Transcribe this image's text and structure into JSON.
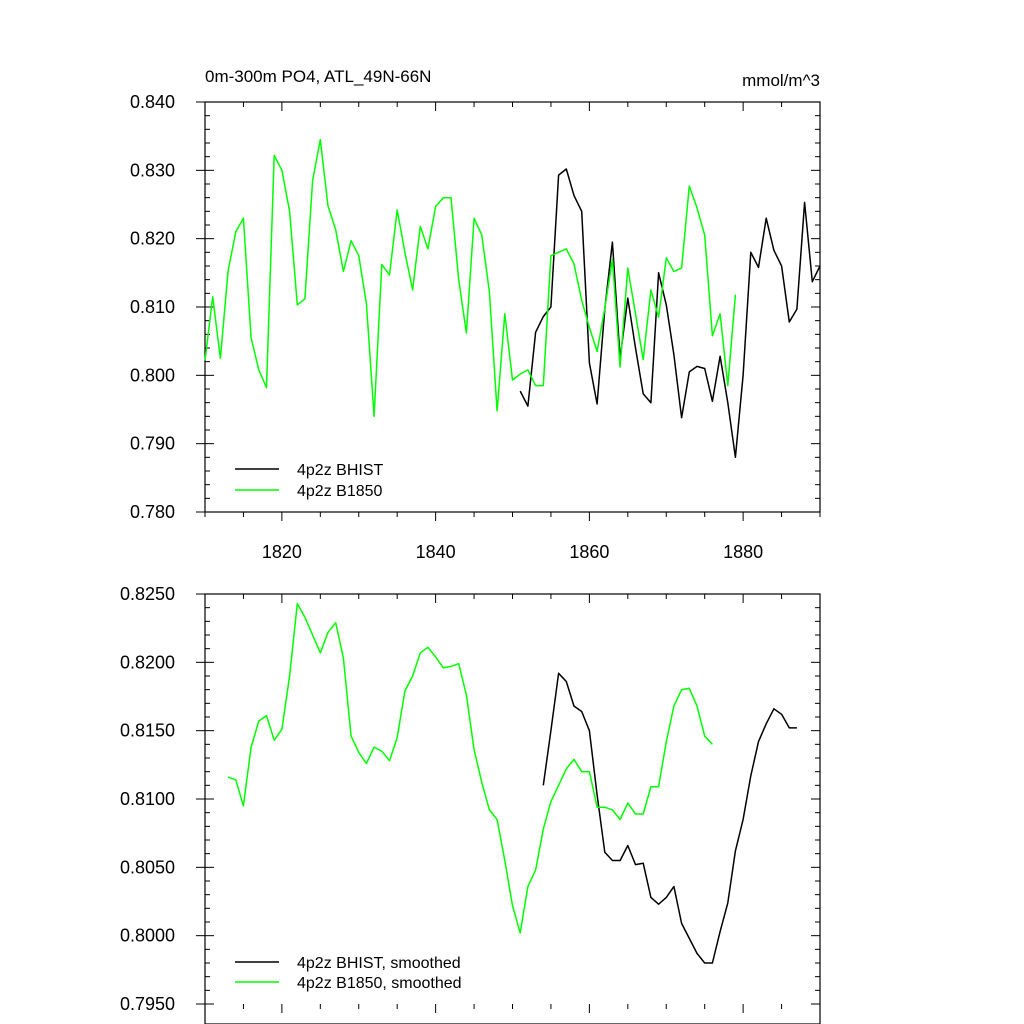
{
  "chart_data": [
    {
      "type": "line",
      "title": "0m-300m PO4, ATL_49N-66N",
      "units": "mmol/m^3",
      "xlabel": "",
      "ylabel": "",
      "xlim": [
        1810,
        1890
      ],
      "ylim": [
        0.78,
        0.84
      ],
      "xticks": [
        1820,
        1840,
        1860,
        1880
      ],
      "xtick_labels": [
        "1820",
        "1840",
        "1860",
        "1880"
      ],
      "yticks": [
        0.78,
        0.79,
        0.8,
        0.81,
        0.82,
        0.83,
        0.84
      ],
      "ytick_labels": [
        "0.780",
        "0.790",
        "0.800",
        "0.810",
        "0.820",
        "0.830",
        "0.840"
      ],
      "legend_position": "bottom-left",
      "series": [
        {
          "name": "4p2z BHIST",
          "label": "4p2z BHIST",
          "color": "#000000",
          "x": [
            1851,
            1852,
            1853,
            1854,
            1855,
            1856,
            1857,
            1858,
            1859,
            1860,
            1861,
            1862,
            1863,
            1864,
            1865,
            1866,
            1867,
            1868,
            1869,
            1870,
            1871,
            1872,
            1873,
            1874,
            1875,
            1876,
            1877,
            1878,
            1879,
            1880,
            1881,
            1882,
            1883,
            1884,
            1885,
            1886,
            1887,
            1888,
            1889,
            1890
          ],
          "y": [
            0.7977,
            0.7955,
            0.8063,
            0.8086,
            0.81,
            0.8293,
            0.8302,
            0.8263,
            0.824,
            0.8018,
            0.7958,
            0.8097,
            0.8195,
            0.8025,
            0.8113,
            0.804,
            0.7973,
            0.796,
            0.815,
            0.8103,
            0.803,
            0.7938,
            0.8005,
            0.8013,
            0.801,
            0.7962,
            0.8028,
            0.796,
            0.788,
            0.8,
            0.818,
            0.8158,
            0.823,
            0.8183,
            0.816,
            0.8078,
            0.8097,
            0.8253,
            0.8137,
            0.816
          ]
        },
        {
          "name": "4p2z B1850",
          "label": "4p2z B1850",
          "color": "#00ff00",
          "x": [
            1810,
            1811,
            1812,
            1813,
            1814,
            1815,
            1816,
            1817,
            1818,
            1819,
            1820,
            1821,
            1822,
            1823,
            1824,
            1825,
            1826,
            1827,
            1828,
            1829,
            1830,
            1831,
            1832,
            1833,
            1834,
            1835,
            1836,
            1837,
            1838,
            1839,
            1840,
            1841,
            1842,
            1843,
            1844,
            1845,
            1846,
            1847,
            1848,
            1849,
            1850,
            1851,
            1852,
            1853,
            1854,
            1855,
            1856,
            1857,
            1858,
            1859,
            1860,
            1861,
            1862,
            1863,
            1864,
            1865,
            1866,
            1867,
            1868,
            1869,
            1870,
            1871,
            1872,
            1873,
            1874,
            1875,
            1876,
            1877,
            1878,
            1879
          ],
          "y": [
            0.8022,
            0.8115,
            0.8025,
            0.8153,
            0.821,
            0.823,
            0.8055,
            0.8008,
            0.7982,
            0.8322,
            0.83,
            0.824,
            0.8103,
            0.8112,
            0.8285,
            0.8345,
            0.8248,
            0.8213,
            0.8152,
            0.8197,
            0.8175,
            0.8105,
            0.794,
            0.8162,
            0.8147,
            0.8242,
            0.818,
            0.8125,
            0.8218,
            0.8185,
            0.8247,
            0.826,
            0.826,
            0.814,
            0.8062,
            0.823,
            0.8205,
            0.8122,
            0.7948,
            0.809,
            0.7993,
            0.8002,
            0.8008,
            0.7985,
            0.7985,
            0.8175,
            0.818,
            0.8185,
            0.8163,
            0.811,
            0.807,
            0.8035,
            0.8098,
            0.817,
            0.8012,
            0.8157,
            0.809,
            0.8023,
            0.8125,
            0.8085,
            0.8172,
            0.8152,
            0.8157,
            0.8277,
            0.8245,
            0.8205,
            0.8058,
            0.809,
            0.7985,
            0.8118
          ]
        }
      ]
    },
    {
      "type": "line",
      "title": "",
      "xlabel": "",
      "ylabel": "",
      "xlim": [
        1810,
        1890
      ],
      "ylim": [
        0.795,
        0.825
      ],
      "xticks": [
        1820,
        1840,
        1860,
        1880
      ],
      "yticks": [
        0.795,
        0.8,
        0.805,
        0.81,
        0.815,
        0.82,
        0.825
      ],
      "ytick_labels": [
        "0.7950",
        "0.8000",
        "0.8050",
        "0.8100",
        "0.8150",
        "0.8200",
        "0.8250"
      ],
      "legend_position": "bottom-left",
      "series": [
        {
          "name": "4p2z BHIST, smoothed",
          "label": "4p2z BHIST, smoothed",
          "color": "#000000",
          "x": [
            1854,
            1855,
            1856,
            1857,
            1858,
            1859,
            1860,
            1861,
            1862,
            1863,
            1864,
            1865,
            1866,
            1867,
            1868,
            1869,
            1870,
            1871,
            1872,
            1873,
            1874,
            1875,
            1876,
            1877,
            1878,
            1879,
            1880,
            1881,
            1882,
            1883,
            1884,
            1885,
            1886,
            1887
          ],
          "y": [
            0.811,
            0.815,
            0.8192,
            0.8186,
            0.8168,
            0.8164,
            0.815,
            0.8103,
            0.8061,
            0.8055,
            0.8055,
            0.8066,
            0.8052,
            0.8053,
            0.8028,
            0.8023,
            0.8028,
            0.8036,
            0.8009,
            0.7998,
            0.7987,
            0.798,
            0.798,
            0.8003,
            0.8024,
            0.8062,
            0.8085,
            0.8117,
            0.8142,
            0.8155,
            0.8166,
            0.8162,
            0.8152,
            0.8152
          ]
        },
        {
          "name": "4p2z B1850, smoothed",
          "label": "4p2z B1850, smoothed",
          "color": "#00ff00",
          "x": [
            1813,
            1814,
            1815,
            1816,
            1817,
            1818,
            1819,
            1820,
            1821,
            1822,
            1823,
            1824,
            1825,
            1826,
            1827,
            1828,
            1829,
            1830,
            1831,
            1832,
            1833,
            1834,
            1835,
            1836,
            1837,
            1838,
            1839,
            1840,
            1841,
            1842,
            1843,
            1844,
            1845,
            1846,
            1847,
            1848,
            1849,
            1850,
            1851,
            1852,
            1853,
            1854,
            1855,
            1856,
            1857,
            1858,
            1859,
            1860,
            1861,
            1862,
            1863,
            1864,
            1865,
            1866,
            1867,
            1868,
            1869,
            1870,
            1871,
            1872,
            1873,
            1874,
            1875,
            1876
          ],
          "y": [
            0.8116,
            0.8114,
            0.8095,
            0.8138,
            0.8157,
            0.8161,
            0.8143,
            0.8151,
            0.819,
            0.8243,
            0.8233,
            0.822,
            0.8207,
            0.8222,
            0.8229,
            0.8203,
            0.8146,
            0.8134,
            0.8126,
            0.8138,
            0.8135,
            0.8128,
            0.8145,
            0.8179,
            0.819,
            0.8207,
            0.8211,
            0.8204,
            0.8196,
            0.8197,
            0.8199,
            0.8176,
            0.8136,
            0.8112,
            0.8092,
            0.8085,
            0.8055,
            0.8022,
            0.8002,
            0.8036,
            0.8048,
            0.8078,
            0.8098,
            0.811,
            0.8122,
            0.8129,
            0.812,
            0.812,
            0.8094,
            0.8094,
            0.8092,
            0.8085,
            0.8097,
            0.8089,
            0.8089,
            0.8109,
            0.8109,
            0.8142,
            0.8168,
            0.818,
            0.8181,
            0.8168,
            0.8146,
            0.814
          ]
        }
      ]
    }
  ]
}
